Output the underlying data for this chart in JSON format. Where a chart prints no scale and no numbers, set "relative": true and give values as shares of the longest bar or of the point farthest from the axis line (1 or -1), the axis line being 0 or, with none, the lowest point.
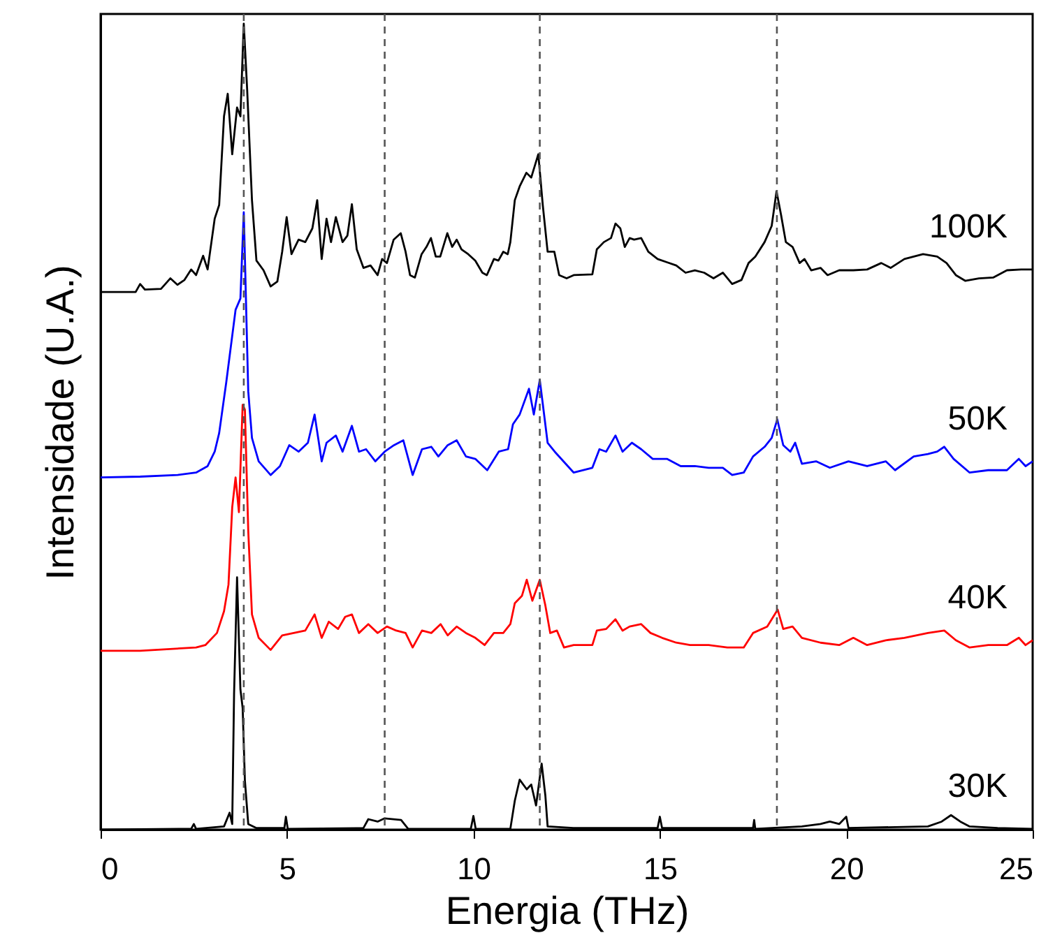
{
  "chart_data": {
    "type": "line",
    "relative": true,
    "xlabel": "Energia (THz)",
    "ylabel": "Intensidade (U.A.)",
    "xlim": [
      0,
      25
    ],
    "xticks": [
      0,
      5,
      10,
      15,
      20,
      25
    ],
    "grid": false,
    "marker": "none",
    "line_style": "solid",
    "ref_lines": [
      {
        "axis": "x",
        "value": 3.84,
        "color": "#555555",
        "line_style": "dashed"
      },
      {
        "axis": "x",
        "value": 7.62,
        "color": "#555555",
        "line_style": "dashed"
      },
      {
        "axis": "x",
        "value": 11.78,
        "color": "#555555",
        "line_style": "dashed"
      },
      {
        "axis": "x",
        "value": 18.14,
        "color": "#555555",
        "line_style": "dashed"
      }
    ],
    "series": [
      {
        "name": "100K",
        "color": "#000000",
        "x": [
          0,
          0.94,
          1.06,
          1.19,
          1.62,
          1.87,
          2.06,
          2.25,
          2.43,
          2.56,
          2.75,
          2.87,
          3.06,
          3.18,
          3.31,
          3.41,
          3.53,
          3.66,
          3.75,
          3.84,
          3.93,
          4.06,
          4.18,
          4.37,
          4.56,
          4.74,
          4.87,
          4.99,
          5.12,
          5.31,
          5.49,
          5.68,
          5.81,
          5.93,
          6.06,
          6.18,
          6.31,
          6.49,
          6.62,
          6.74,
          6.87,
          7.05,
          7.24,
          7.43,
          7.55,
          7.68,
          7.86,
          8.05,
          8.18,
          8.3,
          8.43,
          8.61,
          8.74,
          8.86,
          8.99,
          9.11,
          9.3,
          9.43,
          9.55,
          9.68,
          9.86,
          10.05,
          10.24,
          10.36,
          10.55,
          10.67,
          10.8,
          10.92,
          10.99,
          11.11,
          11.24,
          11.42,
          11.55,
          11.74,
          11.86,
          11.99,
          12.17,
          12.3,
          12.5,
          12.69,
          13.19,
          13.31,
          13.5,
          13.69,
          13.81,
          13.94,
          14.06,
          14.19,
          14.31,
          14.5,
          14.69,
          14.94,
          15.19,
          15.44,
          15.69,
          15.94,
          16.19,
          16.44,
          16.69,
          16.94,
          17.19,
          17.38,
          17.56,
          17.81,
          18.0,
          18.13,
          18.25,
          18.38,
          18.56,
          18.75,
          18.88,
          19.06,
          19.31,
          19.5,
          19.81,
          20.19,
          20.56,
          20.94,
          21.19,
          21.56,
          21.81,
          22.06,
          22.44,
          22.69,
          22.94,
          23.19,
          23.56,
          23.94,
          24.31,
          24.69,
          25
        ],
        "values": [
          0.667,
          0.667,
          0.677,
          0.67,
          0.671,
          0.684,
          0.676,
          0.682,
          0.695,
          0.688,
          0.712,
          0.695,
          0.758,
          0.775,
          0.885,
          0.913,
          0.838,
          0.896,
          0.885,
          1.0,
          0.919,
          0.781,
          0.706,
          0.694,
          0.674,
          0.68,
          0.717,
          0.76,
          0.714,
          0.732,
          0.729,
          0.746,
          0.781,
          0.708,
          0.758,
          0.729,
          0.76,
          0.729,
          0.737,
          0.776,
          0.72,
          0.697,
          0.7,
          0.688,
          0.708,
          0.703,
          0.732,
          0.74,
          0.717,
          0.688,
          0.685,
          0.714,
          0.723,
          0.734,
          0.711,
          0.711,
          0.74,
          0.723,
          0.732,
          0.72,
          0.714,
          0.706,
          0.691,
          0.688,
          0.708,
          0.706,
          0.717,
          0.714,
          0.729,
          0.781,
          0.798,
          0.815,
          0.809,
          0.838,
          0.775,
          0.717,
          0.717,
          0.688,
          0.684,
          0.688,
          0.689,
          0.72,
          0.729,
          0.734,
          0.752,
          0.746,
          0.723,
          0.734,
          0.732,
          0.734,
          0.717,
          0.708,
          0.704,
          0.7,
          0.691,
          0.694,
          0.691,
          0.684,
          0.691,
          0.677,
          0.682,
          0.703,
          0.711,
          0.729,
          0.749,
          0.792,
          0.763,
          0.729,
          0.723,
          0.703,
          0.708,
          0.694,
          0.697,
          0.688,
          0.694,
          0.694,
          0.695,
          0.703,
          0.697,
          0.708,
          0.711,
          0.714,
          0.711,
          0.703,
          0.688,
          0.681,
          0.684,
          0.685,
          0.694,
          0.695,
          0.695
        ]
      },
      {
        "name": "50K",
        "color": "#0000ff",
        "x": [
          0,
          1.06,
          2.06,
          2.56,
          2.87,
          3.06,
          3.18,
          3.37,
          3.62,
          3.75,
          3.84,
          3.96,
          4.06,
          4.24,
          4.56,
          4.81,
          5.06,
          5.31,
          5.56,
          5.74,
          5.93,
          6.06,
          6.31,
          6.49,
          6.74,
          6.93,
          7.12,
          7.37,
          7.62,
          7.87,
          8.12,
          8.37,
          8.62,
          8.87,
          9.06,
          9.31,
          9.55,
          9.8,
          10.05,
          10.37,
          10.68,
          10.93,
          11.06,
          11.24,
          11.49,
          11.62,
          11.78,
          11.99,
          12.18,
          12.69,
          13.19,
          13.38,
          13.56,
          13.81,
          14.0,
          14.25,
          14.5,
          14.81,
          15.19,
          15.56,
          15.94,
          16.31,
          16.69,
          16.94,
          17.25,
          17.5,
          17.81,
          18.0,
          18.15,
          18.31,
          18.5,
          18.63,
          18.81,
          19.19,
          19.56,
          20.06,
          20.56,
          21.06,
          21.31,
          21.81,
          22.19,
          22.44,
          22.63,
          22.88,
          23.31,
          23.81,
          24.31,
          24.63,
          24.81,
          25
        ],
        "values": [
          0.437,
          0.438,
          0.44,
          0.443,
          0.451,
          0.469,
          0.492,
          0.555,
          0.645,
          0.659,
          0.766,
          0.544,
          0.486,
          0.457,
          0.44,
          0.451,
          0.477,
          0.469,
          0.48,
          0.515,
          0.457,
          0.48,
          0.489,
          0.469,
          0.501,
          0.469,
          0.472,
          0.457,
          0.469,
          0.477,
          0.483,
          0.44,
          0.472,
          0.475,
          0.463,
          0.477,
          0.483,
          0.463,
          0.46,
          0.446,
          0.469,
          0.472,
          0.503,
          0.515,
          0.547,
          0.515,
          0.558,
          0.48,
          0.469,
          0.443,
          0.449,
          0.472,
          0.469,
          0.489,
          0.469,
          0.48,
          0.472,
          0.46,
          0.46,
          0.451,
          0.451,
          0.449,
          0.449,
          0.44,
          0.443,
          0.463,
          0.475,
          0.486,
          0.509,
          0.477,
          0.469,
          0.48,
          0.454,
          0.457,
          0.449,
          0.457,
          0.451,
          0.457,
          0.446,
          0.463,
          0.466,
          0.469,
          0.475,
          0.46,
          0.443,
          0.446,
          0.446,
          0.46,
          0.451,
          0.457
        ]
      },
      {
        "name": "40K",
        "color": "#ff0000",
        "x": [
          0,
          1.06,
          2.56,
          2.81,
          3.12,
          3.31,
          3.43,
          3.53,
          3.62,
          3.71,
          3.81,
          3.87,
          3.96,
          4.06,
          4.24,
          4.56,
          4.87,
          5.18,
          5.49,
          5.74,
          5.93,
          6.12,
          6.37,
          6.56,
          6.74,
          6.93,
          7.18,
          7.43,
          7.68,
          7.93,
          8.18,
          8.37,
          8.62,
          8.87,
          9.12,
          9.31,
          9.55,
          9.8,
          10.05,
          10.3,
          10.55,
          10.8,
          10.99,
          11.11,
          11.3,
          11.43,
          11.58,
          11.78,
          11.93,
          12.06,
          12.24,
          12.43,
          12.69,
          13.19,
          13.31,
          13.56,
          13.81,
          14.0,
          14.19,
          14.5,
          14.75,
          15.06,
          15.44,
          15.81,
          16.31,
          16.81,
          17.25,
          17.5,
          17.88,
          18.16,
          18.31,
          18.56,
          18.81,
          19.31,
          19.81,
          20.19,
          20.56,
          21.06,
          21.56,
          22.19,
          22.63,
          22.94,
          23.31,
          23.81,
          24.31,
          24.63,
          24.81,
          25
        ],
        "values": [
          0.222,
          0.222,
          0.226,
          0.229,
          0.244,
          0.271,
          0.304,
          0.4,
          0.437,
          0.394,
          0.527,
          0.521,
          0.371,
          0.267,
          0.238,
          0.223,
          0.241,
          0.244,
          0.247,
          0.267,
          0.238,
          0.258,
          0.249,
          0.264,
          0.267,
          0.244,
          0.255,
          0.244,
          0.252,
          0.247,
          0.244,
          0.226,
          0.247,
          0.244,
          0.255,
          0.241,
          0.252,
          0.244,
          0.238,
          0.229,
          0.244,
          0.244,
          0.255,
          0.281,
          0.29,
          0.31,
          0.284,
          0.31,
          0.278,
          0.244,
          0.247,
          0.226,
          0.229,
          0.229,
          0.247,
          0.249,
          0.261,
          0.247,
          0.252,
          0.255,
          0.244,
          0.238,
          0.232,
          0.229,
          0.229,
          0.226,
          0.226,
          0.244,
          0.252,
          0.273,
          0.249,
          0.252,
          0.238,
          0.232,
          0.229,
          0.238,
          0.229,
          0.235,
          0.238,
          0.244,
          0.247,
          0.235,
          0.226,
          0.229,
          0.229,
          0.238,
          0.229,
          0.235
        ]
      },
      {
        "name": "30K",
        "color": "#000000",
        "x": [
          0,
          2.43,
          2.5,
          2.56,
          3.31,
          3.46,
          3.53,
          3.58,
          3.66,
          3.75,
          3.81,
          3.87,
          3.96,
          4.18,
          4.93,
          4.97,
          5.02,
          7.05,
          7.18,
          7.43,
          7.62,
          8.06,
          8.25,
          9.93,
          10.0,
          10.06,
          10.99,
          11.11,
          11.24,
          11.43,
          11.55,
          11.68,
          11.83,
          11.93,
          11.99,
          12.68,
          14.94,
          15.0,
          15.06,
          17.5,
          17.53,
          17.56,
          18.81,
          19.31,
          19.56,
          19.81,
          20.0,
          20.06,
          22.19,
          22.56,
          22.81,
          23.06,
          23.31,
          24.06,
          25
        ],
        "values": [
          0,
          0.001,
          0.007,
          0.001,
          0.004,
          0.021,
          0.007,
          0.169,
          0.313,
          0.174,
          0.151,
          0.061,
          0.007,
          0.002,
          0.002,
          0.016,
          0.001,
          0.002,
          0.013,
          0.01,
          0.014,
          0.012,
          0.001,
          0.001,
          0.017,
          0.001,
          0.001,
          0.036,
          0.062,
          0.05,
          0.056,
          0.03,
          0.082,
          0.042,
          0.004,
          0.002,
          0.002,
          0.016,
          0.002,
          0.002,
          0.012,
          0.001,
          0.004,
          0.007,
          0.01,
          0.007,
          0.016,
          0.002,
          0.004,
          0.01,
          0.018,
          0.01,
          0.004,
          0.002,
          0.001
        ]
      }
    ]
  }
}
